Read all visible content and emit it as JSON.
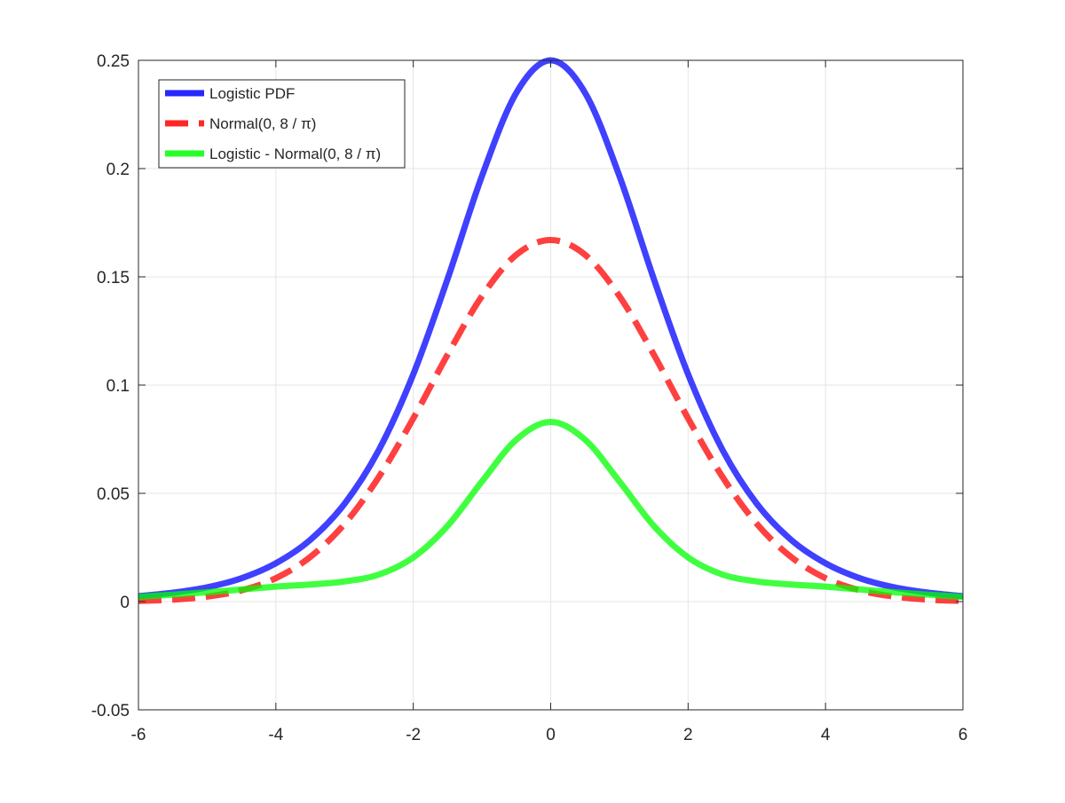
{
  "chart_data": {
    "type": "line",
    "title": "",
    "xlabel": "",
    "ylabel": "",
    "xlim": [
      -6,
      6
    ],
    "ylim": [
      -0.05,
      0.25
    ],
    "grid": true,
    "legend_position": "top-left",
    "x_ticks": [
      "-6",
      "-4",
      "-2",
      "0",
      "2",
      "4",
      "6"
    ],
    "x_tick_values": [
      -6,
      -4,
      -2,
      0,
      2,
      4,
      6
    ],
    "y_ticks": [
      "-0.05",
      "0",
      "0.05",
      "0.1",
      "0.15",
      "0.2",
      "0.25"
    ],
    "y_tick_values": [
      -0.05,
      0,
      0.05,
      0.1,
      0.15,
      0.2,
      0.25
    ],
    "x": [
      -6,
      -5.5,
      -5,
      -4.5,
      -4,
      -3.5,
      -3,
      -2.5,
      -2,
      -1.5,
      -1,
      -0.5,
      0,
      0.5,
      1,
      1.5,
      2,
      2.5,
      3,
      3.5,
      4,
      4.5,
      5,
      5.5,
      6
    ],
    "series": [
      {
        "name": "Logistic PDF",
        "color": "#0000ff",
        "style": "solid",
        "values": [
          0.0025,
          0.0041,
          0.0066,
          0.0108,
          0.0177,
          0.0285,
          0.0452,
          0.0701,
          0.105,
          0.1491,
          0.1966,
          0.235,
          0.25,
          0.235,
          0.1966,
          0.1491,
          0.105,
          0.0701,
          0.0452,
          0.0285,
          0.0177,
          0.0108,
          0.0066,
          0.0041,
          0.0025
        ]
      },
      {
        "name": "Normal(0, 8 / π)",
        "color": "#ff0000",
        "style": "dashed",
        "values": [
          0.0003,
          0.0009,
          0.0023,
          0.0052,
          0.0108,
          0.0206,
          0.0359,
          0.0576,
          0.0846,
          0.1141,
          0.1411,
          0.1602,
          0.167,
          0.1602,
          0.1411,
          0.1141,
          0.0846,
          0.0576,
          0.0359,
          0.0206,
          0.0108,
          0.0052,
          0.0023,
          0.0009,
          0.0003
        ]
      },
      {
        "name": "Logistic - Normal(0, 8 / π)",
        "color": "#00ff00",
        "style": "solid",
        "values": [
          0.0022,
          0.0032,
          0.0043,
          0.0056,
          0.0069,
          0.0079,
          0.0093,
          0.0125,
          0.0204,
          0.035,
          0.0555,
          0.0748,
          0.083,
          0.0748,
          0.0555,
          0.035,
          0.0204,
          0.0125,
          0.0093,
          0.0079,
          0.0069,
          0.0056,
          0.0043,
          0.0032,
          0.0022
        ]
      }
    ]
  }
}
